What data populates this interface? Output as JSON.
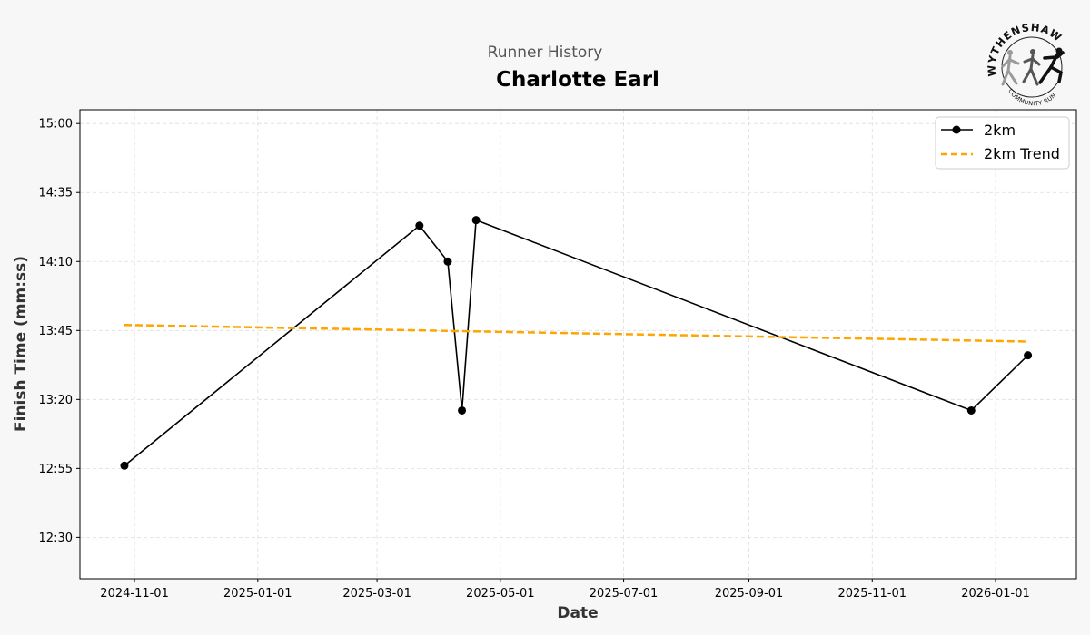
{
  "page": {
    "subtitle": "Runner History",
    "title": "Charlotte Earl",
    "logo": {
      "top_text": "WYTHENSHAWE",
      "bottom_text": "COMMUNITY RUN"
    }
  },
  "chart_data": {
    "type": "line",
    "title": "Charlotte Earl",
    "subtitle": "Runner History",
    "xlabel": "Date",
    "ylabel": "Finish Time (mm:ss)",
    "x_type": "date",
    "y_unit": "seconds",
    "xlim": [
      "2024-10-05",
      "2026-02-10"
    ],
    "ylim": [
      735,
      905
    ],
    "x_ticks": [
      {
        "value": "2024-11-01",
        "label": "2024-11-01"
      },
      {
        "value": "2025-01-01",
        "label": "2025-01-01"
      },
      {
        "value": "2025-03-01",
        "label": "2025-03-01"
      },
      {
        "value": "2025-05-01",
        "label": "2025-05-01"
      },
      {
        "value": "2025-07-01",
        "label": "2025-07-01"
      },
      {
        "value": "2025-09-01",
        "label": "2025-09-01"
      },
      {
        "value": "2025-11-01",
        "label": "2025-11-01"
      },
      {
        "value": "2026-01-01",
        "label": "2026-01-01"
      }
    ],
    "y_ticks": [
      {
        "value": 750,
        "label": "12:30"
      },
      {
        "value": 775,
        "label": "12:55"
      },
      {
        "value": 800,
        "label": "13:20"
      },
      {
        "value": 825,
        "label": "13:45"
      },
      {
        "value": 850,
        "label": "14:10"
      },
      {
        "value": 875,
        "label": "14:35"
      },
      {
        "value": 900,
        "label": "15:00"
      }
    ],
    "grid": true,
    "legend_position": "top-right",
    "series": [
      {
        "name": "2km",
        "style": "line-marker",
        "color": "#000000",
        "points": [
          {
            "x": "2024-10-27",
            "y": 776
          },
          {
            "x": "2025-03-22",
            "y": 863
          },
          {
            "x": "2025-04-05",
            "y": 850
          },
          {
            "x": "2025-04-12",
            "y": 796
          },
          {
            "x": "2025-04-19",
            "y": 865
          },
          {
            "x": "2025-12-20",
            "y": 796
          },
          {
            "x": "2026-01-17",
            "y": 816
          }
        ]
      },
      {
        "name": "2km Trend",
        "style": "dashed",
        "color": "#FFA500",
        "points": [
          {
            "x": "2024-10-27",
            "y": 827
          },
          {
            "x": "2026-01-17",
            "y": 821
          }
        ]
      }
    ]
  }
}
